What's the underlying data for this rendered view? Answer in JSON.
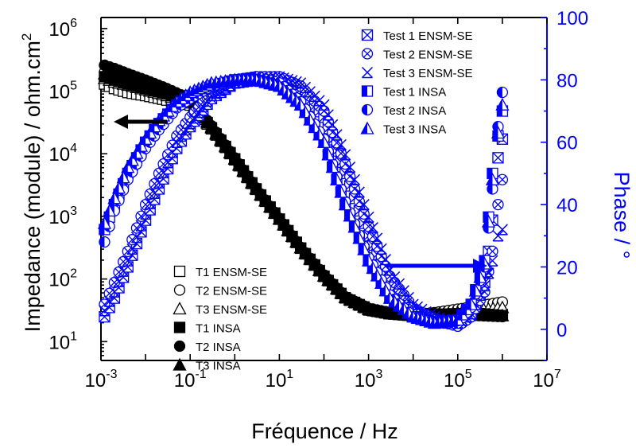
{
  "chart_data": {
    "type": "scatter",
    "title": "",
    "xlabel": "Fréquence / Hz",
    "ylabel": "Impedance (module) / ohm.cm",
    "ylabel_superscript": "2",
    "y2label": "Phase / °",
    "x_scale": "log",
    "y_scale": "log",
    "xlim": [
      0.001,
      10000000
    ],
    "ylim": [
      5,
      1500000
    ],
    "y2lim": [
      -10,
      100
    ],
    "x_ticks": [
      {
        "base": "10",
        "exp": "-3",
        "value": 0.001
      },
      {
        "base": "10",
        "exp": "-1",
        "value": 0.1
      },
      {
        "base": "10",
        "exp": "1",
        "value": 10
      },
      {
        "base": "10",
        "exp": "3",
        "value": 1000
      },
      {
        "base": "10",
        "exp": "5",
        "value": 100000
      },
      {
        "base": "10",
        "exp": "7",
        "value": 10000000
      }
    ],
    "y_ticks": [
      {
        "base": "10",
        "exp": "1",
        "value": 10
      },
      {
        "base": "10",
        "exp": "2",
        "value": 100
      },
      {
        "base": "10",
        "exp": "3",
        "value": 1000
      },
      {
        "base": "10",
        "exp": "4",
        "value": 10000
      },
      {
        "base": "10",
        "exp": "5",
        "value": 100000
      },
      {
        "base": "10",
        "exp": "6",
        "value": 1000000
      }
    ],
    "y2_ticks": [
      "0",
      "20",
      "40",
      "60",
      "80",
      "100"
    ],
    "grid": false,
    "modulus_series": [
      {
        "name": "T1 ENSM-SE",
        "marker": "square-open",
        "color": "#000000",
        "axis": "left",
        "x": [
          0.0012,
          0.002,
          0.004,
          0.01,
          0.03,
          0.1,
          0.3,
          1,
          3,
          10,
          30,
          100,
          300,
          1000,
          3000,
          10000,
          30000,
          100000,
          300000,
          1000000
        ],
        "y": [
          130000,
          110000,
          95000,
          85000,
          72000,
          60000,
          25000,
          8000,
          2700,
          900,
          310,
          110,
          50,
          33,
          28,
          26,
          26,
          27,
          28,
          27
        ]
      },
      {
        "name": "T2 ENSM-SE",
        "marker": "circle-open",
        "color": "#000000",
        "axis": "left",
        "x": [
          0.0012,
          0.002,
          0.004,
          0.01,
          0.03,
          0.1,
          0.3,
          1,
          3,
          10,
          30,
          100,
          300,
          1000,
          3000,
          10000,
          30000,
          100000,
          300000,
          1000000
        ],
        "y": [
          200000,
          180000,
          160000,
          130000,
          100000,
          70000,
          27000,
          8500,
          2800,
          920,
          320,
          115,
          52,
          34,
          29,
          27,
          29,
          33,
          37,
          43
        ]
      },
      {
        "name": "T3 ENSM-SE",
        "marker": "triangle-open",
        "color": "#000000",
        "axis": "left",
        "x": [
          0.0012,
          0.002,
          0.004,
          0.01,
          0.03,
          0.1,
          0.3,
          1,
          3,
          10,
          30,
          100,
          300,
          1000,
          3000,
          10000,
          30000,
          100000,
          300000,
          1000000
        ],
        "y": [
          160000,
          140000,
          125000,
          105000,
          85000,
          65000,
          26000,
          8200,
          2750,
          910,
          315,
          112,
          51,
          33,
          28,
          26,
          27,
          29,
          32,
          35
        ]
      },
      {
        "name": "T1 INSA",
        "marker": "square-filled",
        "color": "#000000",
        "axis": "left",
        "x": [
          0.0012,
          0.002,
          0.004,
          0.01,
          0.03,
          0.1,
          0.3,
          1,
          3,
          10,
          30,
          100,
          300,
          1000,
          3000,
          10000,
          30000,
          100000,
          300000,
          1000000
        ],
        "y": [
          170000,
          150000,
          130000,
          110000,
          90000,
          68000,
          26000,
          8300,
          2750,
          905,
          312,
          111,
          50,
          32,
          28,
          27,
          27,
          28,
          28,
          26
        ]
      },
      {
        "name": "T2 INSA",
        "marker": "circle-filled",
        "color": "#000000",
        "axis": "left",
        "x": [
          0.0012,
          0.002,
          0.004,
          0.01,
          0.03,
          0.1,
          0.3,
          1,
          3,
          10,
          30,
          100,
          300,
          1000,
          3000,
          10000,
          30000,
          100000,
          300000,
          1000000
        ],
        "y": [
          260000,
          230000,
          190000,
          150000,
          110000,
          75000,
          28000,
          8600,
          2850,
          930,
          322,
          116,
          52,
          34,
          29,
          28,
          28,
          27,
          26,
          25
        ]
      },
      {
        "name": "T3 INSA",
        "marker": "triangle-filled",
        "color": "#000000",
        "axis": "left",
        "x": [
          0.0012,
          0.002,
          0.004,
          0.01,
          0.03,
          0.1,
          0.3,
          1,
          3,
          10,
          30,
          100,
          300,
          1000,
          3000,
          10000,
          30000,
          100000,
          300000,
          1000000
        ],
        "y": [
          190000,
          170000,
          150000,
          120000,
          95000,
          70000,
          27000,
          8400,
          2800,
          915,
          318,
          113,
          51,
          33,
          28,
          27,
          27,
          27,
          27,
          26
        ]
      }
    ],
    "phase_series": [
      {
        "name": "Test 1 ENSM-SE",
        "marker": "square-x",
        "color": "#0000ff",
        "axis": "right",
        "x": [
          0.0012,
          0.002,
          0.004,
          0.01,
          0.02,
          0.05,
          0.1,
          0.3,
          1,
          3,
          10,
          30,
          100,
          300,
          1000,
          3000,
          10000,
          30000,
          100000,
          200000,
          400000,
          600000,
          800000,
          1000000
        ],
        "y": [
          4,
          10,
          20,
          35,
          45,
          58,
          65,
          74,
          79,
          80,
          80,
          77,
          68,
          50,
          30,
          15,
          6,
          3,
          2,
          5,
          15,
          35,
          55,
          61
        ]
      },
      {
        "name": "Test 2 ENSM-SE",
        "marker": "circle-x",
        "color": "#0000ff",
        "axis": "right",
        "x": [
          0.0012,
          0.002,
          0.004,
          0.01,
          0.02,
          0.05,
          0.1,
          0.3,
          1,
          3,
          10,
          30,
          100,
          300,
          1000,
          3000,
          10000,
          30000,
          100000,
          200000,
          400000,
          600000,
          800000,
          1000000
        ],
        "y": [
          8,
          15,
          25,
          40,
          50,
          62,
          68,
          76,
          80,
          81,
          81,
          78,
          70,
          53,
          33,
          17,
          7,
          3,
          1,
          4,
          12,
          25,
          40,
          48
        ]
      },
      {
        "name": "Test 3 ENSM-SE",
        "marker": "asterisk-x",
        "color": "#0000ff",
        "axis": "right",
        "x": [
          0.0012,
          0.002,
          0.004,
          0.01,
          0.02,
          0.05,
          0.1,
          0.3,
          1,
          3,
          10,
          30,
          100,
          300,
          1000,
          3000,
          10000,
          30000,
          100000,
          200000,
          400000,
          600000,
          800000,
          1000000
        ],
        "y": [
          6,
          12,
          22,
          37,
          47,
          60,
          66,
          75,
          79,
          80,
          81,
          79,
          72,
          56,
          36,
          19,
          8,
          4,
          2,
          5,
          14,
          22,
          30,
          32
        ]
      },
      {
        "name": "Test 1 INSA",
        "marker": "square-half",
        "color": "#0000ff",
        "axis": "right",
        "x": [
          0.0012,
          0.002,
          0.004,
          0.01,
          0.02,
          0.05,
          0.1,
          0.3,
          1,
          3,
          10,
          30,
          100,
          300,
          1000,
          3000,
          10000,
          30000,
          100000,
          200000,
          400000,
          600000,
          800000,
          1000000
        ],
        "y": [
          32,
          40,
          50,
          60,
          66,
          72,
          75,
          78,
          80,
          80,
          78,
          72,
          60,
          40,
          22,
          10,
          4,
          2,
          3,
          8,
          22,
          50,
          62,
          70
        ]
      },
      {
        "name": "Test 2 INSA",
        "marker": "circle-half",
        "color": "#0000ff",
        "axis": "right",
        "x": [
          0.0012,
          0.002,
          0.004,
          0.01,
          0.02,
          0.05,
          0.1,
          0.3,
          1,
          3,
          10,
          30,
          100,
          300,
          1000,
          3000,
          10000,
          30000,
          100000,
          200000,
          400000,
          600000,
          800000,
          1000000
        ],
        "y": [
          28,
          38,
          48,
          58,
          64,
          71,
          74,
          78,
          80,
          81,
          79,
          73,
          61,
          41,
          23,
          11,
          4,
          2,
          2,
          7,
          20,
          45,
          65,
          76
        ]
      },
      {
        "name": "Test 3 INSA",
        "marker": "triangle-half",
        "color": "#0000ff",
        "axis": "right",
        "x": [
          0.0012,
          0.002,
          0.004,
          0.01,
          0.02,
          0.05,
          0.1,
          0.3,
          1,
          3,
          10,
          30,
          100,
          300,
          1000,
          3000,
          10000,
          30000,
          100000,
          200000,
          400000,
          600000,
          800000,
          1000000
        ],
        "y": [
          34,
          42,
          52,
          61,
          67,
          73,
          76,
          79,
          80,
          80,
          78,
          72,
          60,
          40,
          22,
          10,
          4,
          2,
          3,
          8,
          21,
          48,
          63,
          72
        ]
      }
    ],
    "arrows": [
      {
        "points_to": "left",
        "color": "#000000"
      },
      {
        "points_to": "right",
        "color": "#0000ff"
      }
    ],
    "legends": [
      {
        "position": "bottom-left",
        "series": [
          "T1 ENSM-SE",
          "T2 ENSM-SE",
          "T3 ENSM-SE",
          "T1 INSA",
          "T2 INSA",
          "T3 INSA"
        ]
      },
      {
        "position": "top-right",
        "series": [
          "Test 1 ENSM-SE",
          "Test 2 ENSM-SE",
          "Test 3 ENSM-SE",
          "Test 1 INSA",
          "Test 2 INSA",
          "Test 3 INSA"
        ]
      }
    ]
  }
}
